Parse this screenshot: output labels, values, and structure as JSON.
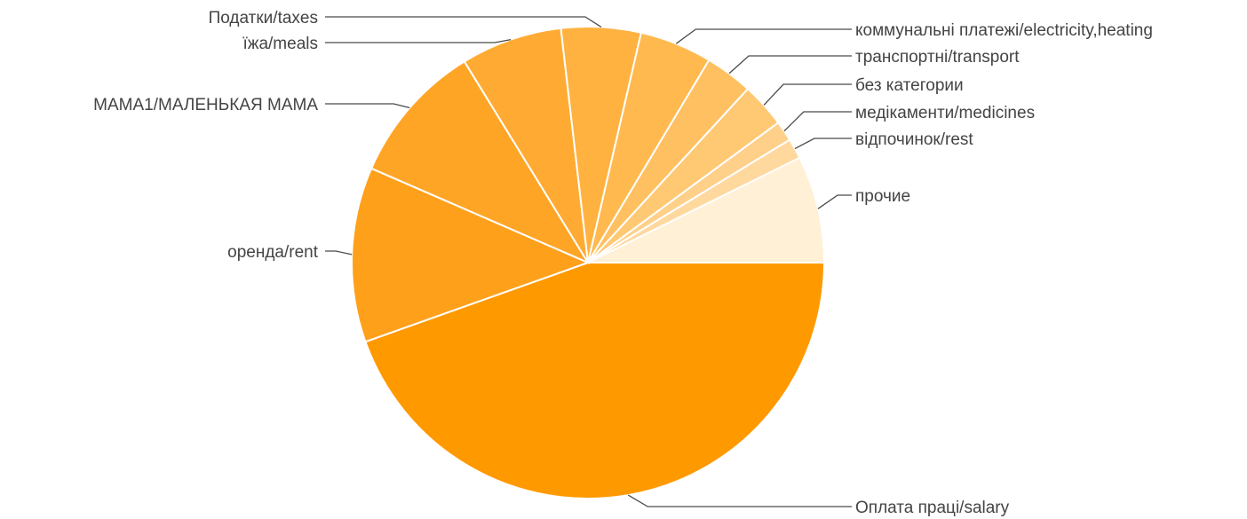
{
  "chart_data": {
    "type": "pie",
    "title": "",
    "start_angle_deg": 90,
    "direction": "clockwise",
    "slices": [
      {
        "label": "Оплата праці/salary",
        "value": 45.0,
        "color": "#ff9900"
      },
      {
        "label": "оренда/rent",
        "value": 12.1,
        "color": "#ffa01a"
      },
      {
        "label": "МАМА1/МАЛЕНЬКАЯ МАМА",
        "value": 9.8,
        "color": "#ffa526"
      },
      {
        "label": "їжа/meals",
        "value": 7.0,
        "color": "#ffab33"
      },
      {
        "label": "Податки/taxes",
        "value": 5.5,
        "color": "#ffb240"
      },
      {
        "label": "коммунальні платежі/electricity,heating",
        "value": 5.0,
        "color": "#ffb94f"
      },
      {
        "label": "транспортні/transport",
        "value": 3.3,
        "color": "#ffc061"
      },
      {
        "label": "без категории",
        "value": 3.1,
        "color": "#ffc873"
      },
      {
        "label": "медікаменти/medicines",
        "value": 1.4,
        "color": "#ffd08a"
      },
      {
        "label": "відпочинок/rest",
        "value": 1.4,
        "color": "#ffd89e"
      },
      {
        "label": "прочие",
        "value": 7.4,
        "color": "#fff0d6"
      }
    ]
  }
}
